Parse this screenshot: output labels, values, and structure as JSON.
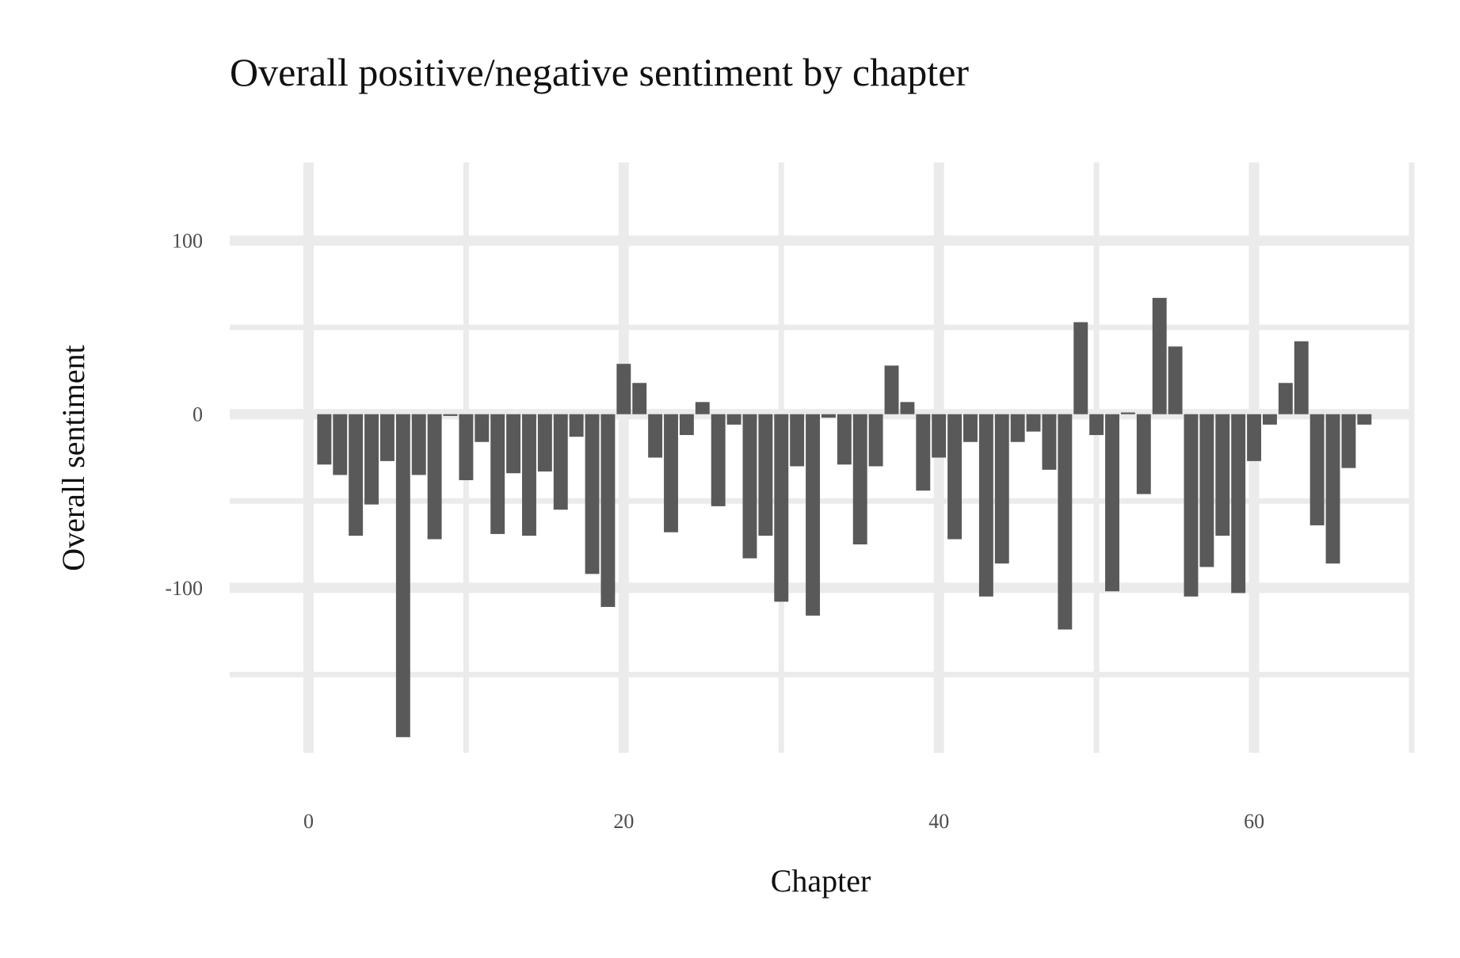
{
  "chart_data": {
    "type": "bar",
    "title": "Overall positive/negative sentiment by chapter",
    "xlabel": "Chapter",
    "ylabel": "Overall sentiment",
    "xlim": [
      -5,
      70
    ],
    "ylim": [
      -195,
      145
    ],
    "x_ticks": [
      0,
      20,
      40,
      60
    ],
    "x_tick_labels": [
      "0",
      "20",
      "40",
      "60"
    ],
    "y_ticks": [
      -100,
      0,
      100
    ],
    "y_tick_labels": [
      "-100",
      "0",
      "100"
    ],
    "grid": true,
    "legend": "none",
    "bar_color": "#595959",
    "grid_color": "#ebebeb",
    "x": [
      1,
      2,
      3,
      4,
      5,
      6,
      7,
      8,
      9,
      10,
      11,
      12,
      13,
      14,
      15,
      16,
      17,
      18,
      19,
      20,
      21,
      22,
      23,
      24,
      25,
      26,
      27,
      28,
      29,
      30,
      31,
      32,
      33,
      34,
      35,
      36,
      37,
      38,
      39,
      40,
      41,
      42,
      43,
      44,
      45,
      46,
      47,
      48,
      49,
      50,
      51,
      52,
      53,
      54,
      55,
      56,
      57,
      58,
      59,
      60,
      61,
      62,
      63,
      64,
      65,
      66,
      67
    ],
    "values": [
      -29,
      -35,
      -70,
      -52,
      -27,
      -186,
      -35,
      -72,
      -1,
      -38,
      -16,
      -69,
      -34,
      -70,
      -33,
      -55,
      -13,
      -92,
      -111,
      29,
      18,
      -25,
      -68,
      -12,
      7,
      -53,
      -6,
      -83,
      -70,
      -108,
      -30,
      -116,
      -2,
      -29,
      -75,
      -30,
      28,
      7,
      -44,
      -25,
      -72,
      -16,
      -105,
      -86,
      -16,
      -10,
      -32,
      -124,
      53,
      -12,
      -102,
      1,
      -46,
      67,
      39,
      -105,
      -88,
      -70,
      -103,
      -27,
      -6,
      18,
      42,
      -64,
      -86,
      -31,
      -6
    ]
  }
}
